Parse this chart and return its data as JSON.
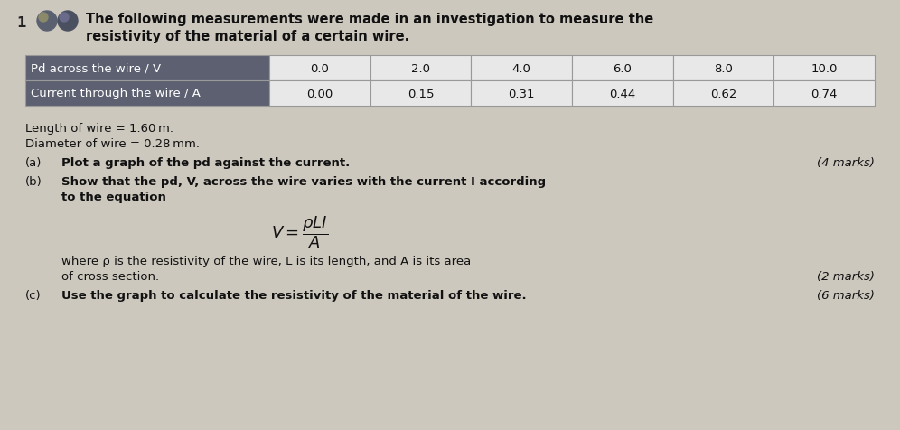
{
  "question_number": "1",
  "intro_text_line1": "The following measurements were made in an investigation to measure the",
  "intro_text_line2": "resistivity of the material of a certain wire.",
  "table": {
    "row1_label": "Pd across the wire / V",
    "row2_label": "Current through the wire / A",
    "pd_values": [
      "0.0",
      "2.0",
      "4.0",
      "6.0",
      "8.0",
      "10.0"
    ],
    "current_values": [
      "0.00",
      "0.15",
      "0.31",
      "0.44",
      "0.62",
      "0.74"
    ],
    "header_bg": "#5c6070",
    "header_text_color": "#ffffff",
    "cell_bg": "#e8e8e8",
    "cell_border": "#999999"
  },
  "length_text": "Length of wire = 1.60 m.",
  "diameter_text": "Diameter of wire = 0.28 mm.",
  "part_a_label": "(a)",
  "part_a_text": "Plot a graph of the pd against the current.",
  "part_a_marks": "(4 marks)",
  "part_b_label": "(b)",
  "part_b_text_line1": "Show that the pd, V, across the wire varies with the current I according",
  "part_b_text_line2": "to the equation",
  "part_b_desc_line1": "where ρ is the resistivity of the wire, L is its length, and A is its area",
  "part_b_desc_line2": "of cross section.",
  "part_b_marks": "(2 marks)",
  "part_c_label": "(c)",
  "part_c_text": "Use the graph to calculate the resistivity of the material of the wire.",
  "part_c_marks": "(6 marks)",
  "background_color": "#cdc8be",
  "circle1_color": "#5a6070",
  "circle2_color": "#4a5060",
  "font_size_intro": 10.5,
  "font_size_table_label": 9.5,
  "font_size_table_val": 9.5,
  "font_size_body": 9.5,
  "font_size_marks": 9.5,
  "font_size_eq": 13
}
